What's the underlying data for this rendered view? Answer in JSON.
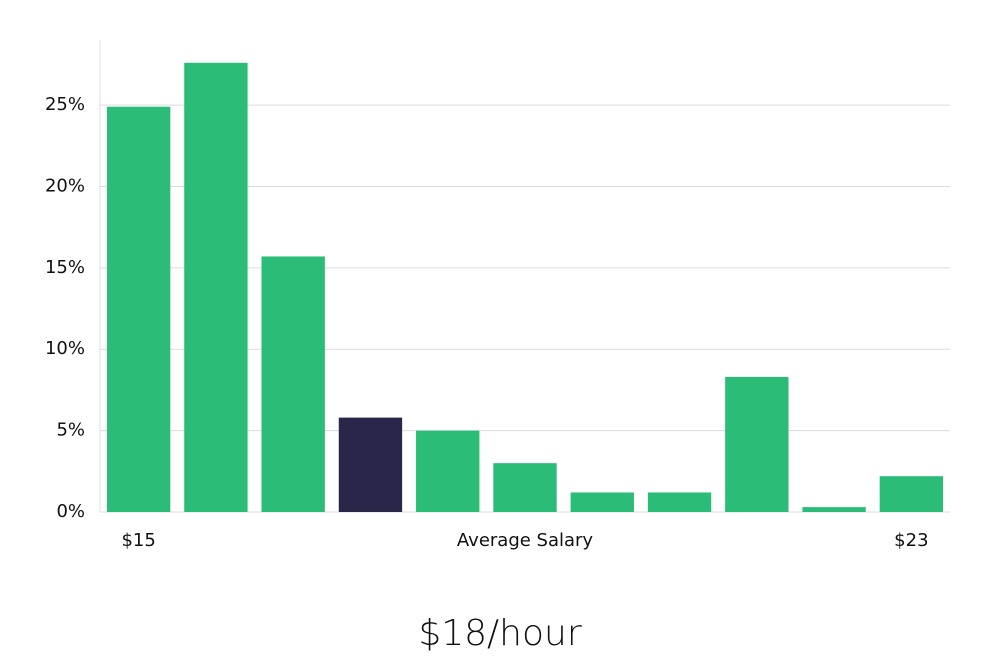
{
  "chart_data": {
    "type": "bar",
    "x_label": "Average Salary",
    "annotation": "$18/hour",
    "categories": [
      "$15",
      null,
      null,
      null,
      null,
      null,
      null,
      null,
      null,
      null,
      "$23"
    ],
    "values": [
      24.9,
      27.6,
      15.7,
      5.8,
      5.0,
      3.0,
      1.2,
      1.2,
      8.3,
      0.3,
      2.2
    ],
    "colors": [
      "#2bbd77",
      "#2bbd77",
      "#2bbd77",
      "#29264a",
      "#2bbd77",
      "#2bbd77",
      "#2bbd77",
      "#2bbd77",
      "#2bbd77",
      "#2bbd77",
      "#2bbd77"
    ],
    "ylim": [
      0,
      29
    ],
    "yticks": [
      {
        "value": 0,
        "label": "0%"
      },
      {
        "value": 5,
        "label": "5%"
      },
      {
        "value": 10,
        "label": "10%"
      },
      {
        "value": 15,
        "label": "15%"
      },
      {
        "value": 20,
        "label": "20%"
      },
      {
        "value": 25,
        "label": "25%"
      }
    ],
    "grid": true
  }
}
